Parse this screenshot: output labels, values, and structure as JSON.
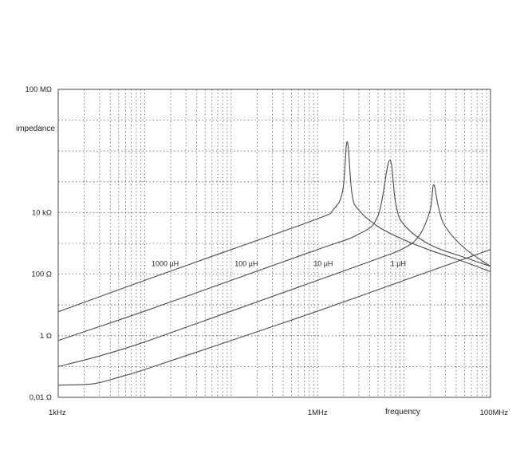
{
  "chart_data": {
    "type": "line",
    "xlabel": "frequency",
    "ylabel": "impedance",
    "x_scale": "log",
    "y_scale": "log",
    "xlim": [
      1000,
      100000000
    ],
    "ylim": [
      0.01,
      100000000
    ],
    "grid": true,
    "x_ticks": [
      {
        "value": 1000,
        "label": "1kHz"
      },
      {
        "value": 1000000,
        "label": "1MHz"
      },
      {
        "value": 100000000,
        "label": "100MHz"
      }
    ],
    "y_ticks": [
      {
        "value": 0.01,
        "label": "0,01 Ω"
      },
      {
        "value": 1,
        "label": "1 Ω"
      },
      {
        "value": 100,
        "label": "100 Ω"
      },
      {
        "value": 10000,
        "label": "10 kΩ"
      },
      {
        "value": 100000000,
        "label": "100 MΩ"
      }
    ],
    "series": [
      {
        "name": "1000 µH",
        "label_at": {
          "x": 12000,
          "y": 180
        },
        "x": [
          1000,
          10000,
          100000,
          1000000,
          1500000,
          1950000,
          2200000,
          2500000,
          3000000,
          5000000,
          10000000,
          20000000,
          50000000,
          100000000
        ],
        "y": [
          6,
          63,
          628,
          6300,
          12000,
          50000,
          2000000,
          40000,
          12000,
          3500,
          1300,
          600,
          250,
          120
        ]
      },
      {
        "name": "100 µH",
        "label_at": {
          "x": 110000,
          "y": 180
        },
        "x": [
          1000,
          10000,
          100000,
          1000000,
          3000000,
          5000000,
          6800000,
          8000000,
          10000000,
          20000000,
          50000000,
          100000000
        ],
        "y": [
          0.7,
          6.3,
          63,
          630,
          2000,
          8000,
          500000,
          20000,
          4000,
          900,
          350,
          180
        ]
      },
      {
        "name": "10 µH",
        "label_at": {
          "x": 900000,
          "y": 180
        },
        "x": [
          1000,
          3000,
          10000,
          100000,
          1000000,
          5000000,
          10000000,
          15000000,
          20000000,
          22000000,
          25000000,
          30000000,
          50000000,
          100000000
        ],
        "y": [
          0.1,
          0.22,
          0.63,
          6.3,
          63,
          320,
          700,
          1800,
          12000,
          80000,
          15000,
          3500,
          700,
          180
        ]
      },
      {
        "name": "1 µH",
        "label_at": {
          "x": 7000000,
          "y": 180
        },
        "x": [
          1000,
          2000,
          3000,
          5000,
          10000,
          100000,
          1000000,
          10000000,
          100000000
        ],
        "y": [
          0.025,
          0.026,
          0.03,
          0.045,
          0.08,
          0.7,
          6.3,
          63,
          630
        ]
      }
    ]
  }
}
